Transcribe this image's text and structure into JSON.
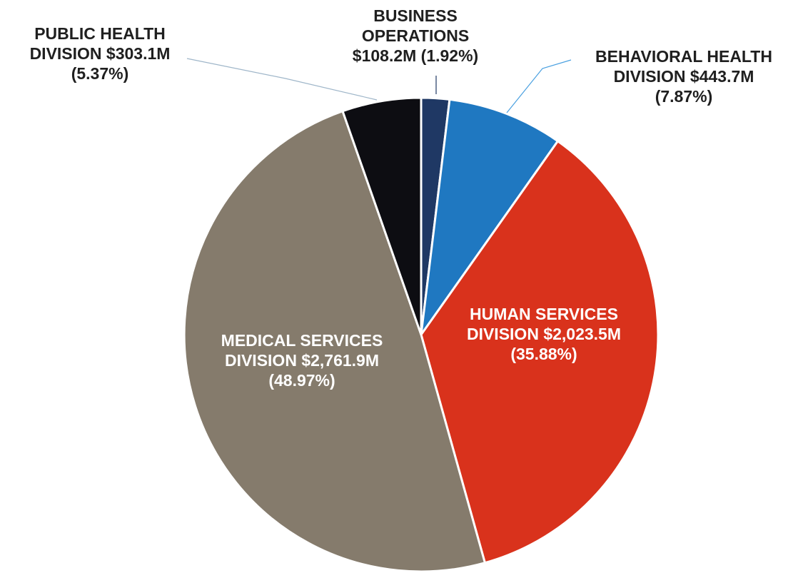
{
  "chart_data": {
    "type": "pie",
    "start_angle_deg": 0,
    "direction": "clockwise",
    "slices": [
      {
        "name": "BUSINESS OPERATIONS",
        "value": 108.2,
        "percent": 1.92,
        "color": "#1f3864",
        "label_lines": [
          "BUSINESS",
          "OPERATIONS",
          "$108.2M (1.92%)"
        ],
        "label_position": "outside-top",
        "leader_color": "#1f3864"
      },
      {
        "name": "BEHAVIORAL HEALTH DIVISION",
        "value": 443.7,
        "percent": 7.87,
        "color": "#1f78c1",
        "label_lines": [
          "BEHAVIORAL HEALTH",
          "DIVISION $443.7M",
          "(7.87%)"
        ],
        "label_position": "outside-top-right",
        "leader_color": "#4aa0e0"
      },
      {
        "name": "HUMAN SERVICES DIVISION",
        "value": 2023.5,
        "percent": 35.88,
        "color": "#d9321c",
        "label_lines": [
          "HUMAN SERVICES",
          "DIVISION $2,023.5M",
          "(35.88%)"
        ],
        "label_position": "inside"
      },
      {
        "name": "MEDICAL SERVICES DIVISION",
        "value": 2761.9,
        "percent": 48.97,
        "color": "#857b6c",
        "label_lines": [
          "MEDICAL SERVICES",
          "DIVISION $2,761.9M",
          "(48.97%)"
        ],
        "label_position": "inside"
      },
      {
        "name": "PUBLIC HEALTH DIVISION",
        "value": 303.1,
        "percent": 5.37,
        "color": "#0d0d12",
        "label_lines": [
          "PUBLIC HEALTH",
          "DIVISION $303.1M",
          "(5.37%)"
        ],
        "label_position": "outside-top-left",
        "leader_color": "#9fb6c9"
      }
    ]
  }
}
